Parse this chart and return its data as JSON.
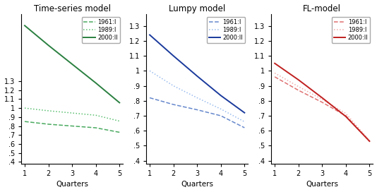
{
  "quarters": [
    1,
    2,
    3,
    4,
    5
  ],
  "panel1": {
    "title": "Time-series model",
    "lines": {
      "1961:I": [
        0.85,
        0.82,
        0.8,
        0.78,
        0.73
      ],
      "1989:I": [
        1.0,
        0.97,
        0.945,
        0.92,
        0.855
      ],
      "2000:II": [
        1.92,
        1.7,
        1.49,
        1.28,
        1.06
      ]
    },
    "styles": {
      "1961:I": {
        "color": "#4aaa60",
        "linestyle": "--",
        "linewidth": 1.1
      },
      "1989:I": {
        "color": "#5abf70",
        "linestyle": ":",
        "linewidth": 1.1
      },
      "2000:II": {
        "color": "#2a8040",
        "linestyle": "-",
        "linewidth": 1.4
      }
    },
    "ylim": [
      0.38,
      2.05
    ],
    "yticks": [
      0.4,
      0.5,
      0.6,
      0.7,
      0.8,
      0.9,
      1.0,
      1.1,
      1.2,
      1.3
    ]
  },
  "panel2": {
    "title": "Lumpy model",
    "lines": {
      "1961:I": [
        0.82,
        0.775,
        0.74,
        0.7,
        0.62
      ],
      "1989:I": [
        1.0,
        0.9,
        0.82,
        0.745,
        0.66
      ],
      "2000:II": [
        1.24,
        1.1,
        0.965,
        0.835,
        0.72
      ]
    },
    "styles": {
      "1961:I": {
        "color": "#6688cc",
        "linestyle": "--",
        "linewidth": 1.1
      },
      "1989:I": {
        "color": "#99bbee",
        "linestyle": ":",
        "linewidth": 1.1
      },
      "2000:II": {
        "color": "#1a3a9c",
        "linestyle": "-",
        "linewidth": 1.4
      }
    },
    "ylim": [
      0.38,
      1.38
    ],
    "yticks": [
      0.4,
      0.5,
      0.6,
      0.7,
      0.8,
      0.9,
      1.0,
      1.1,
      1.2,
      1.3
    ]
  },
  "panel3": {
    "title": "FL-model",
    "lines": {
      "1961:I": [
        0.96,
        0.87,
        0.79,
        0.7,
        0.53
      ],
      "1989:I": [
        0.985,
        0.895,
        0.81,
        0.715,
        0.535
      ],
      "2000:II": [
        1.05,
        0.94,
        0.82,
        0.695,
        0.53
      ]
    },
    "styles": {
      "1961:I": {
        "color": "#e07070",
        "linestyle": "--",
        "linewidth": 1.1
      },
      "1989:I": {
        "color": "#f0aaaa",
        "linestyle": ":",
        "linewidth": 1.1
      },
      "2000:II": {
        "color": "#c02020",
        "linestyle": "-",
        "linewidth": 1.4
      }
    },
    "ylim": [
      0.38,
      1.38
    ],
    "yticks": [
      0.4,
      0.5,
      0.6,
      0.7,
      0.8,
      0.9,
      1.0,
      1.1,
      1.2,
      1.3
    ]
  },
  "xlabel": "Quarters",
  "legend_labels": [
    "1961:I",
    "1989:I",
    "2000:II"
  ],
  "xticks": [
    1,
    2,
    3,
    4,
    5
  ],
  "figure_bg": "#ffffff",
  "axes_bg": "#ffffff"
}
